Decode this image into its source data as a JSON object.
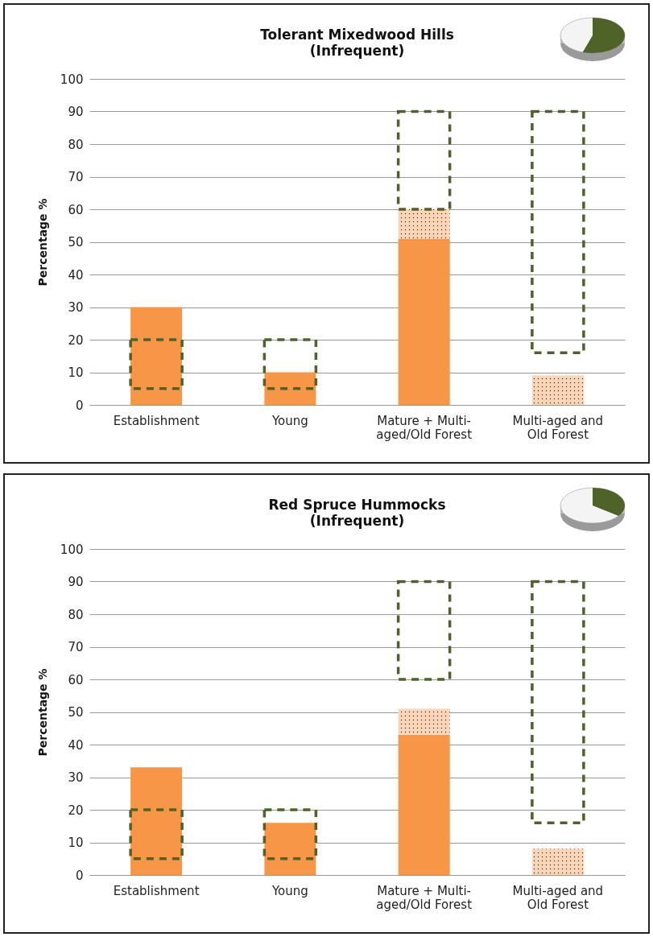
{
  "chart_data": [
    {
      "type": "bar",
      "title": "Tolerant Mixedwood Hills",
      "subtitle": "(Infrequent)",
      "ylabel": "Percentage %",
      "categories": [
        "Establishment",
        "Young",
        "Mature + Multi-\naged/Old Forest",
        "Multi-aged and\nOld Forest"
      ],
      "grid": "y",
      "ylim": [
        0,
        100
      ],
      "yticks": [
        0,
        10,
        20,
        30,
        40,
        50,
        60,
        70,
        80,
        90,
        100
      ],
      "series": [
        {
          "color": "#f79646",
          "values": [
            30,
            10,
            51,
            0
          ]
        },
        {
          "color": "#fbd5b5",
          "base": [
            null,
            null,
            51,
            0
          ],
          "values": [
            null,
            null,
            9,
            9
          ]
        },
        {
          "color": "#4f6228",
          "line_style": "dashed",
          "base": [
            5,
            5,
            60,
            16
          ],
          "values": [
            15,
            15,
            30,
            74
          ]
        }
      ]
    },
    {
      "type": "bar",
      "title": "Red Spruce Hummocks",
      "subtitle": "(Infrequent)",
      "ylabel": "Percentage %",
      "categories": [
        "Establishment",
        "Young",
        "Mature + Multi-\naged/Old Forest",
        "Multi-aged and\nOld Forest"
      ],
      "grid": "y",
      "ylim": [
        0,
        100
      ],
      "yticks": [
        0,
        10,
        20,
        30,
        40,
        50,
        60,
        70,
        80,
        90,
        100
      ],
      "series": [
        {
          "color": "#f79646",
          "values": [
            33,
            16,
            43,
            0
          ]
        },
        {
          "color": "#fbd5b5",
          "base": [
            null,
            null,
            43,
            0
          ],
          "values": [
            null,
            null,
            8,
            8
          ]
        },
        {
          "color": "#4f6228",
          "line_style": "dashed",
          "base": [
            5,
            5,
            60,
            16
          ],
          "values": [
            15,
            15,
            30,
            74
          ]
        }
      ]
    }
  ]
}
